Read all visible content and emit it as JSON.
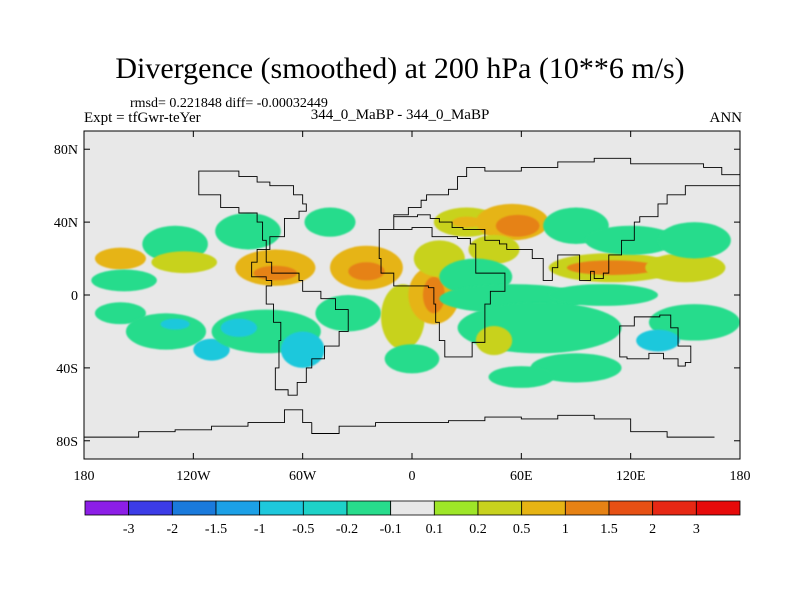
{
  "chart_data": {
    "type": "heatmap",
    "title": "Divergence (smoothed) at 200 hPa (10**6 m/s)",
    "stats_line": "rmsd= 0.221848 diff= -0.00032449",
    "left_label": "Expt = tfGwr-teYer",
    "center_label": "344_0_MaBP - 344_0_MaBP",
    "right_label": "ANN",
    "x_range": [
      -180,
      180
    ],
    "y_range": [
      -90,
      90
    ],
    "x_ticks": [
      {
        "value": -180,
        "label": "180"
      },
      {
        "value": -120,
        "label": "120W"
      },
      {
        "value": -60,
        "label": "60W"
      },
      {
        "value": 0,
        "label": "0"
      },
      {
        "value": 60,
        "label": "60E"
      },
      {
        "value": 120,
        "label": "120E"
      },
      {
        "value": 180,
        "label": "180"
      }
    ],
    "y_ticks": [
      {
        "value": 80,
        "label": "80N"
      },
      {
        "value": 40,
        "label": "40N"
      },
      {
        "value": 0,
        "label": "0"
      },
      {
        "value": -40,
        "label": "40S"
      },
      {
        "value": -80,
        "label": "80S"
      }
    ],
    "colorbar": {
      "labels": [
        "-3",
        "-2",
        "-1.5",
        "-1",
        "-0.5",
        "-0.2",
        "-0.1",
        "0.1",
        "0.2",
        "0.5",
        "1",
        "1.5",
        "2",
        "3"
      ],
      "colors": [
        "#8c1ee6",
        "#3c3ce6",
        "#1a7adc",
        "#1ca0e6",
        "#1ec8dc",
        "#1ed2c8",
        "#28dc8c",
        "#e8e8e8",
        "#9ee628",
        "#c8d21e",
        "#e6b414",
        "#e68214",
        "#e65014",
        "#e62814",
        "#e60a0a"
      ]
    },
    "field": [
      {
        "lon": -160,
        "lat": 20,
        "rx": 14,
        "ry": 6,
        "v": 0.6
      },
      {
        "lon": -158,
        "lat": 8,
        "rx": 18,
        "ry": 6,
        "v": -0.15
      },
      {
        "lon": -160,
        "lat": -10,
        "rx": 14,
        "ry": 6,
        "v": -0.15
      },
      {
        "lon": -130,
        "lat": 28,
        "rx": 18,
        "ry": 10,
        "v": -0.15
      },
      {
        "lon": -125,
        "lat": 18,
        "rx": 18,
        "ry": 6,
        "v": 0.3
      },
      {
        "lon": -135,
        "lat": -20,
        "rx": 22,
        "ry": 10,
        "v": -0.15
      },
      {
        "lon": -130,
        "lat": -16,
        "rx": 8,
        "ry": 3,
        "v": -0.6
      },
      {
        "lon": -110,
        "lat": -30,
        "rx": 10,
        "ry": 6,
        "v": -0.6
      },
      {
        "lon": -90,
        "lat": 35,
        "rx": 18,
        "ry": 10,
        "v": -0.15
      },
      {
        "lon": -75,
        "lat": 15,
        "rx": 22,
        "ry": 10,
        "v": 0.6
      },
      {
        "lon": -75,
        "lat": 12,
        "rx": 12,
        "ry": 4,
        "v": 1.1
      },
      {
        "lon": -80,
        "lat": -20,
        "rx": 30,
        "ry": 12,
        "v": -0.15
      },
      {
        "lon": -95,
        "lat": -18,
        "rx": 10,
        "ry": 5,
        "v": -0.6
      },
      {
        "lon": -60,
        "lat": -30,
        "rx": 12,
        "ry": 10,
        "v": -0.6
      },
      {
        "lon": -45,
        "lat": 40,
        "rx": 14,
        "ry": 8,
        "v": -0.15
      },
      {
        "lon": -25,
        "lat": 15,
        "rx": 20,
        "ry": 12,
        "v": 0.6
      },
      {
        "lon": -25,
        "lat": 13,
        "rx": 10,
        "ry": 5,
        "v": 1.1
      },
      {
        "lon": -35,
        "lat": -10,
        "rx": 18,
        "ry": 10,
        "v": -0.15
      },
      {
        "lon": -5,
        "lat": -12,
        "rx": 12,
        "ry": 18,
        "v": 0.3
      },
      {
        "lon": 12,
        "lat": 0,
        "rx": 14,
        "ry": 16,
        "v": 0.6
      },
      {
        "lon": 12,
        "lat": 0,
        "rx": 6,
        "ry": 10,
        "v": 1.3
      },
      {
        "lon": 15,
        "lat": 20,
        "rx": 14,
        "ry": 10,
        "v": 0.3
      },
      {
        "lon": 30,
        "lat": 40,
        "rx": 18,
        "ry": 8,
        "v": 0.4
      },
      {
        "lon": 30,
        "lat": 40,
        "rx": 8,
        "ry": 3,
        "v": 0.8
      },
      {
        "lon": 55,
        "lat": 40,
        "rx": 20,
        "ry": 10,
        "v": 0.6
      },
      {
        "lon": 58,
        "lat": 38,
        "rx": 12,
        "ry": 6,
        "v": 1.1
      },
      {
        "lon": 45,
        "lat": 25,
        "rx": 14,
        "ry": 8,
        "v": 0.3
      },
      {
        "lon": 35,
        "lat": 10,
        "rx": 20,
        "ry": 10,
        "v": -0.15
      },
      {
        "lon": 55,
        "lat": -2,
        "rx": 40,
        "ry": 8,
        "v": -0.15
      },
      {
        "lon": 70,
        "lat": -18,
        "rx": 45,
        "ry": 14,
        "v": -0.15
      },
      {
        "lon": 45,
        "lat": -25,
        "rx": 10,
        "ry": 8,
        "v": 0.4
      },
      {
        "lon": 90,
        "lat": 38,
        "rx": 18,
        "ry": 10,
        "v": -0.15
      },
      {
        "lon": 110,
        "lat": 15,
        "rx": 35,
        "ry": 8,
        "v": 0.4
      },
      {
        "lon": 110,
        "lat": 15,
        "rx": 25,
        "ry": 4,
        "v": 1.0
      },
      {
        "lon": 120,
        "lat": 30,
        "rx": 25,
        "ry": 8,
        "v": -0.15
      },
      {
        "lon": 105,
        "lat": 0,
        "rx": 30,
        "ry": 6,
        "v": -0.15
      },
      {
        "lon": 150,
        "lat": 15,
        "rx": 22,
        "ry": 8,
        "v": 0.4
      },
      {
        "lon": 155,
        "lat": 30,
        "rx": 20,
        "ry": 10,
        "v": -0.15
      },
      {
        "lon": 155,
        "lat": -15,
        "rx": 25,
        "ry": 10,
        "v": -0.15
      },
      {
        "lon": 135,
        "lat": -25,
        "rx": 12,
        "ry": 6,
        "v": -0.6
      },
      {
        "lon": 90,
        "lat": -40,
        "rx": 25,
        "ry": 8,
        "v": -0.15
      },
      {
        "lon": 60,
        "lat": -45,
        "rx": 18,
        "ry": 6,
        "v": -0.15
      },
      {
        "lon": 0,
        "lat": -35,
        "rx": 15,
        "ry": 8,
        "v": -0.15
      }
    ],
    "continents": [
      [
        [
          -117,
          65
        ],
        [
          -117,
          55
        ],
        [
          -105,
          55
        ],
        [
          -105,
          48
        ],
        [
          -95,
          45
        ],
        [
          -85,
          40
        ],
        [
          -82,
          30
        ],
        [
          -80,
          25
        ],
        [
          -85,
          18
        ],
        [
          -88,
          10
        ],
        [
          -80,
          8
        ],
        [
          -77,
          5
        ],
        [
          -80,
          0
        ],
        [
          -80,
          -5
        ],
        [
          -76,
          -15
        ],
        [
          -72,
          -25
        ],
        [
          -73,
          -40
        ],
        [
          -75,
          -52
        ],
        [
          -68,
          -55
        ],
        [
          -63,
          -48
        ],
        [
          -58,
          -40
        ],
        [
          -55,
          -35
        ],
        [
          -48,
          -28
        ],
        [
          -40,
          -20
        ],
        [
          -35,
          -8
        ],
        [
          -42,
          -2
        ],
        [
          -50,
          2
        ],
        [
          -60,
          8
        ],
        [
          -62,
          12
        ],
        [
          -72,
          12
        ],
        [
          -77,
          18
        ],
        [
          -80,
          25
        ],
        [
          -78,
          32
        ],
        [
          -70,
          42
        ],
        [
          -62,
          46
        ],
        [
          -58,
          50
        ],
        [
          -60,
          55
        ],
        [
          -65,
          60
        ],
        [
          -78,
          62
        ],
        [
          -85,
          65
        ],
        [
          -95,
          68
        ],
        [
          -117,
          65
        ]
      ],
      [
        [
          -6,
          36
        ],
        [
          -18,
          20
        ],
        [
          -17,
          12
        ],
        [
          -10,
          5
        ],
        [
          0,
          5
        ],
        [
          9,
          4
        ],
        [
          12,
          -5
        ],
        [
          13,
          -15
        ],
        [
          15,
          -25
        ],
        [
          18,
          -34
        ],
        [
          26,
          -34
        ],
        [
          33,
          -26
        ],
        [
          40,
          -15
        ],
        [
          40,
          -5
        ],
        [
          43,
          2
        ],
        [
          51,
          12
        ],
        [
          43,
          12
        ],
        [
          35,
          28
        ],
        [
          32,
          31
        ],
        [
          25,
          32
        ],
        [
          11,
          37
        ],
        [
          0,
          36
        ],
        [
          -6,
          36
        ]
      ],
      [
        [
          -10,
          36
        ],
        [
          -10,
          44
        ],
        [
          -2,
          48
        ],
        [
          5,
          52
        ],
        [
          8,
          55
        ],
        [
          15,
          55
        ],
        [
          20,
          58
        ],
        [
          25,
          65
        ],
        [
          30,
          70
        ],
        [
          40,
          68
        ],
        [
          60,
          70
        ],
        [
          80,
          73
        ],
        [
          100,
          75
        ],
        [
          120,
          72
        ],
        [
          140,
          72
        ],
        [
          160,
          70
        ],
        [
          170,
          66
        ],
        [
          180,
          65
        ],
        [
          180,
          60
        ],
        [
          160,
          60
        ],
        [
          150,
          55
        ],
        [
          140,
          50
        ],
        [
          135,
          43
        ],
        [
          125,
          40
        ],
        [
          122,
          30
        ],
        [
          115,
          22
        ],
        [
          108,
          20
        ],
        [
          108,
          12
        ],
        [
          105,
          9
        ],
        [
          100,
          13
        ],
        [
          98,
          8
        ],
        [
          92,
          22
        ],
        [
          88,
          22
        ],
        [
          80,
          15
        ],
        [
          77,
          8
        ],
        [
          72,
          20
        ],
        [
          66,
          25
        ],
        [
          57,
          25
        ],
        [
          52,
          28
        ],
        [
          48,
          30
        ],
        [
          40,
          36
        ],
        [
          36,
          36
        ],
        [
          28,
          37
        ],
        [
          22,
          40
        ],
        [
          15,
          42
        ],
        [
          10,
          44
        ],
        [
          3,
          43
        ],
        [
          -10,
          36
        ]
      ],
      [
        [
          114,
          -22
        ],
        [
          114,
          -34
        ],
        [
          118,
          -35
        ],
        [
          130,
          -32
        ],
        [
          138,
          -35
        ],
        [
          146,
          -39
        ],
        [
          150,
          -37
        ],
        [
          153,
          -28
        ],
        [
          146,
          -18
        ],
        [
          142,
          -11
        ],
        [
          136,
          -12
        ],
        [
          130,
          -12
        ],
        [
          122,
          -17
        ],
        [
          114,
          -22
        ]
      ],
      [
        [
          -55,
          -70
        ],
        [
          -60,
          -63
        ],
        [
          -70,
          -70
        ],
        [
          -90,
          -72
        ],
        [
          -110,
          -74
        ],
        [
          -130,
          -75
        ],
        [
          -150,
          -78
        ],
        [
          -170,
          -78
        ],
        [
          -180,
          -80
        ]
      ],
      [
        [
          166,
          -78
        ],
        [
          140,
          -75
        ],
        [
          120,
          -68
        ],
        [
          100,
          -66
        ],
        [
          80,
          -68
        ],
        [
          60,
          -67
        ],
        [
          40,
          -69
        ],
        [
          20,
          -70
        ],
        [
          0,
          -70
        ],
        [
          -20,
          -72
        ],
        [
          -40,
          -76
        ],
        [
          -55,
          -70
        ]
      ]
    ]
  }
}
